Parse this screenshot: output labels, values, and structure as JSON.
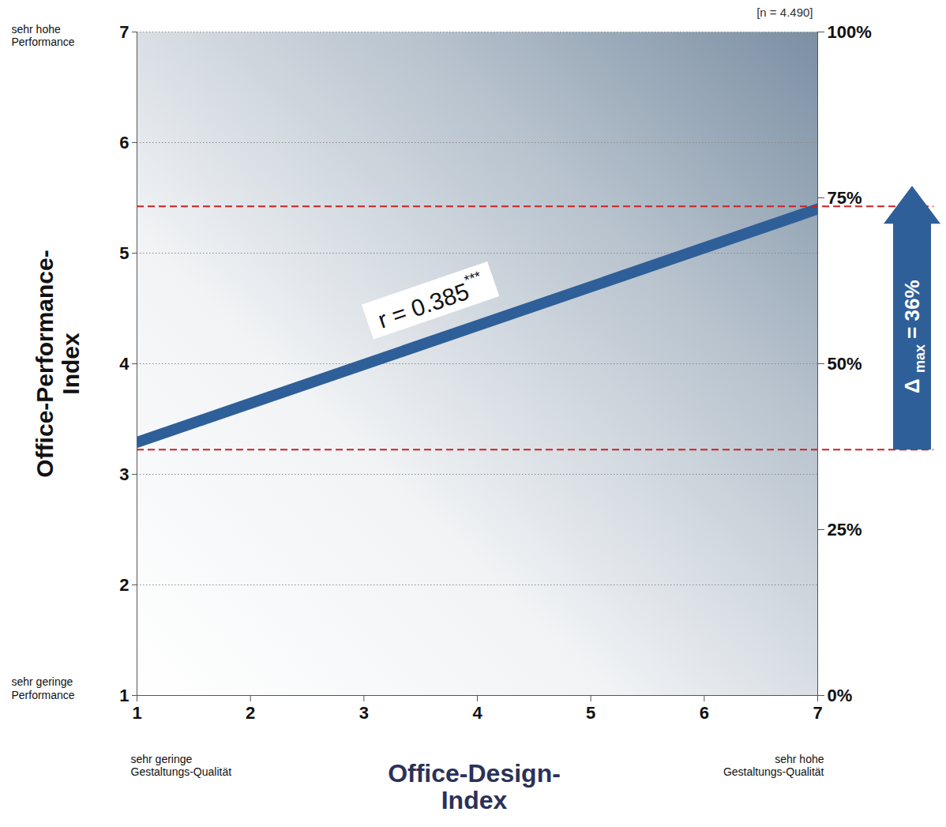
{
  "chart_data": {
    "type": "line",
    "x_label": "Office-Design-Index",
    "y_label": "Office-Performance-Index",
    "x": [
      1,
      7
    ],
    "values": [
      3.29,
      5.4
    ],
    "color": "#2f5f98",
    "xlim": [
      1,
      7
    ],
    "xticks": [
      1,
      2,
      3,
      4,
      5,
      6,
      7
    ],
    "ylim": [
      1,
      7
    ],
    "yticks": [
      1,
      2,
      3,
      4,
      5,
      6,
      7
    ],
    "y2lim": [
      0,
      100
    ],
    "y2ticks": [
      {
        "value": 0,
        "label": "0%"
      },
      {
        "value": 25,
        "label": "25%"
      },
      {
        "value": 50,
        "label": "50%"
      },
      {
        "value": 75,
        "label": "75%"
      },
      {
        "value": 100,
        "label": "100%"
      }
    ],
    "grid": true,
    "reference_lines": {
      "values": [
        3.22,
        5.42
      ],
      "color": "#cc2222",
      "line_style": "dashed"
    },
    "annotations": {
      "n": "[n = 4.490]",
      "correlation": "r = 0.385***",
      "delta": "Δ max = 36%",
      "y_top": "sehr hohe Performance",
      "y_bottom": "sehr geringe Performance",
      "x_left": "sehr geringe Gestaltungs-Qualität",
      "x_right": "sehr hohe Gestaltungs-Qualität"
    }
  }
}
